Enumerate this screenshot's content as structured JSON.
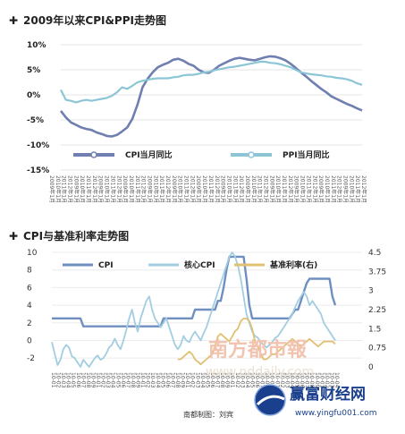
{
  "chart_data": [
    {
      "type": "line",
      "title": "2009年以来CPI&PPI走势图",
      "y_ticks": [
        "10%",
        "5%",
        "0%",
        "-5%",
        "-10%",
        "-15%"
      ],
      "ylim": [
        -15,
        10
      ],
      "x_tick_labels": [
        "2009年1月",
        "2010年1月",
        "2011年1月",
        "2012年1月"
      ],
      "legend_position": "bottom",
      "series": [
        {
          "name": "CPI当月同比",
          "color": "#6f7fb0",
          "values": [
            -3.2,
            -4.5,
            -5.5,
            -6.0,
            -6.5,
            -6.8,
            -7.0,
            -7.5,
            -7.8,
            -8.2,
            -8.3,
            -8.0,
            -7.3,
            -6.5,
            -4.8,
            -2.0,
            1.5,
            3.2,
            4.5,
            5.5,
            6.0,
            6.4,
            7.0,
            7.2,
            6.8,
            6.2,
            5.8,
            5.0,
            4.5,
            4.4,
            5.0,
            5.8,
            6.3,
            6.8,
            7.2,
            7.4,
            7.2,
            7.0,
            6.9,
            7.2,
            7.5,
            7.7,
            7.6,
            7.3,
            6.9,
            6.2,
            5.4,
            4.5,
            3.7,
            2.8,
            2.0,
            1.2,
            0.5,
            -0.3,
            -0.8,
            -1.3,
            -1.8,
            -2.2,
            -2.7,
            -3.1
          ]
        },
        {
          "name": "PPI当月同比",
          "color": "#8cc6d6",
          "values": [
            1.0,
            -1.0,
            -1.2,
            -1.5,
            -1.2,
            -1.0,
            -1.2,
            -1.0,
            -0.8,
            -0.6,
            -0.2,
            0.5,
            1.5,
            1.2,
            1.8,
            2.5,
            2.8,
            3.0,
            3.2,
            3.3,
            3.3,
            3.3,
            3.5,
            3.6,
            3.9,
            4.0,
            4.0,
            4.2,
            4.5,
            4.6,
            4.9,
            5.1,
            5.3,
            5.5,
            5.6,
            5.8,
            6.0,
            6.2,
            6.4,
            6.6,
            6.6,
            6.4,
            6.3,
            6.1,
            5.8,
            5.5,
            5.0,
            4.5,
            4.3,
            4.1,
            4.0,
            3.9,
            3.7,
            3.6,
            3.4,
            3.3,
            3.1,
            2.8,
            2.3,
            2.0
          ]
        }
      ]
    },
    {
      "type": "line",
      "title": "CPI与基准利率走势图",
      "y_ticks_left": [
        "10",
        "8",
        "6",
        "4",
        "2",
        "0",
        "-2"
      ],
      "ylim_left": [
        -3,
        10
      ],
      "y_ticks_right": [
        "4.5",
        "3.75",
        "3",
        "2.25",
        "1.5",
        "0.75",
        "0"
      ],
      "ylim_right": [
        0,
        4.5
      ],
      "legend_position": "top",
      "series": [
        {
          "name": "CPI",
          "axis": "left",
          "color": "#6f8fc0",
          "values": [
            2.5,
            2.5,
            2.5,
            2.5,
            2.5,
            2.5,
            2.5,
            2.5,
            2.5,
            2.5,
            2.5,
            1.6,
            1.6,
            1.6,
            1.6,
            1.6,
            1.6,
            1.6,
            1.6,
            1.6,
            1.6,
            1.6,
            1.6,
            1.6,
            1.6,
            1.6,
            1.6,
            1.6,
            1.6,
            1.6,
            1.6,
            1.6,
            1.6,
            1.6,
            1.6,
            1.6,
            1.6,
            1.6,
            1.6,
            2.5,
            2.5,
            2.5,
            2.5,
            2.5,
            2.5,
            2.5,
            2.5,
            2.5,
            2.5,
            2.5,
            3.5,
            3.5,
            3.5,
            3.5,
            3.5,
            3.5,
            3.5,
            3.5,
            4.5,
            4.5,
            6.0,
            8.0,
            9.5,
            9.5,
            9.5,
            9.5,
            9.5,
            9.5,
            7.0,
            4.0,
            2.5,
            2.5,
            2.5,
            2.5,
            2.5,
            2.5,
            2.5,
            2.5,
            2.5,
            2.5,
            2.5,
            2.5,
            2.5,
            2.5,
            3.0,
            3.5,
            3.5,
            4.5,
            5.5,
            6.5,
            7.0,
            7.0,
            7.0,
            7.0,
            7.0,
            7.0,
            7.0,
            7.0,
            5.0,
            4.0
          ]
        },
        {
          "name": "核心CPI",
          "axis": "left",
          "color": "#a3cde0",
          "values": [
            -0.2,
            -1.5,
            -2.8,
            -2.2,
            -1.0,
            -0.5,
            -0.8,
            -1.8,
            -2.0,
            -2.5,
            -3.0,
            -2.2,
            -2.6,
            -3.0,
            -2.5,
            -2.0,
            -1.7,
            -2.2,
            -2.0,
            -1.5,
            -0.8,
            -0.5,
            0.2,
            -0.5,
            -1.0,
            0.0,
            1.2,
            2.5,
            3.5,
            2.0,
            1.0,
            2.5,
            3.5,
            4.5,
            5.0,
            3.5,
            2.5,
            2.0,
            1.5,
            2.0,
            2.5,
            1.5,
            0.5,
            -0.5,
            -1.0,
            -0.5,
            0.5,
            0.0,
            -0.2,
            0.5,
            1.0,
            0.5,
            0.0,
            0.8,
            1.5,
            2.5,
            3.5,
            4.5,
            5.5,
            6.5,
            7.5,
            8.5,
            9.5,
            10.0,
            9.5,
            8.5,
            7.0,
            5.0,
            3.0,
            2.0,
            1.0,
            0.5,
            0.3,
            -0.2,
            -0.5,
            -0.8,
            -0.5,
            -0.2,
            0.3,
            0.5,
            1.0,
            1.5,
            2.0,
            2.5,
            3.0,
            3.8,
            4.5,
            5.0,
            5.5,
            5.0,
            4.0,
            4.5,
            4.0,
            3.5,
            3.0,
            2.0,
            1.5,
            1.0,
            0.5,
            0.0
          ]
        },
        {
          "name": "基准利率(右)",
          "axis": "right",
          "color": "#e0c071",
          "values": [
            null,
            null,
            null,
            null,
            null,
            null,
            null,
            null,
            null,
            null,
            null,
            null,
            null,
            null,
            null,
            null,
            null,
            null,
            null,
            null,
            null,
            null,
            null,
            null,
            null,
            null,
            null,
            null,
            null,
            null,
            null,
            null,
            null,
            null,
            null,
            null,
            null,
            null,
            null,
            null,
            null,
            null,
            null,
            null,
            0.3,
            0.3,
            0.4,
            0.5,
            0.6,
            0.5,
            0.3,
            0.2,
            0.1,
            0.2,
            0.3,
            0.4,
            0.5,
            0.8,
            1.2,
            1.3,
            1.2,
            1.1,
            1.0,
            1.2,
            1.4,
            1.5,
            1.8,
            1.9,
            1.9,
            1.8,
            1.5,
            1.0,
            0.8,
            0.5,
            0.3,
            0.3,
            0.4,
            0.5,
            0.5,
            0.6,
            0.7,
            0.8,
            0.9,
            1.0,
            1.1,
            1.0,
            0.9,
            0.8,
            0.9,
            1.0,
            1.1,
            1.0,
            0.9,
            0.8,
            0.9,
            1.0,
            1.0,
            1.0,
            1.0,
            0.9
          ]
        }
      ]
    }
  ],
  "watermark": {
    "brand": "南方都市報",
    "url": "www.nddaily.com"
  },
  "credit": "南都制图：刘宾",
  "logo": {
    "name": "赢富财经网",
    "url": "www.yingfu001.com"
  }
}
